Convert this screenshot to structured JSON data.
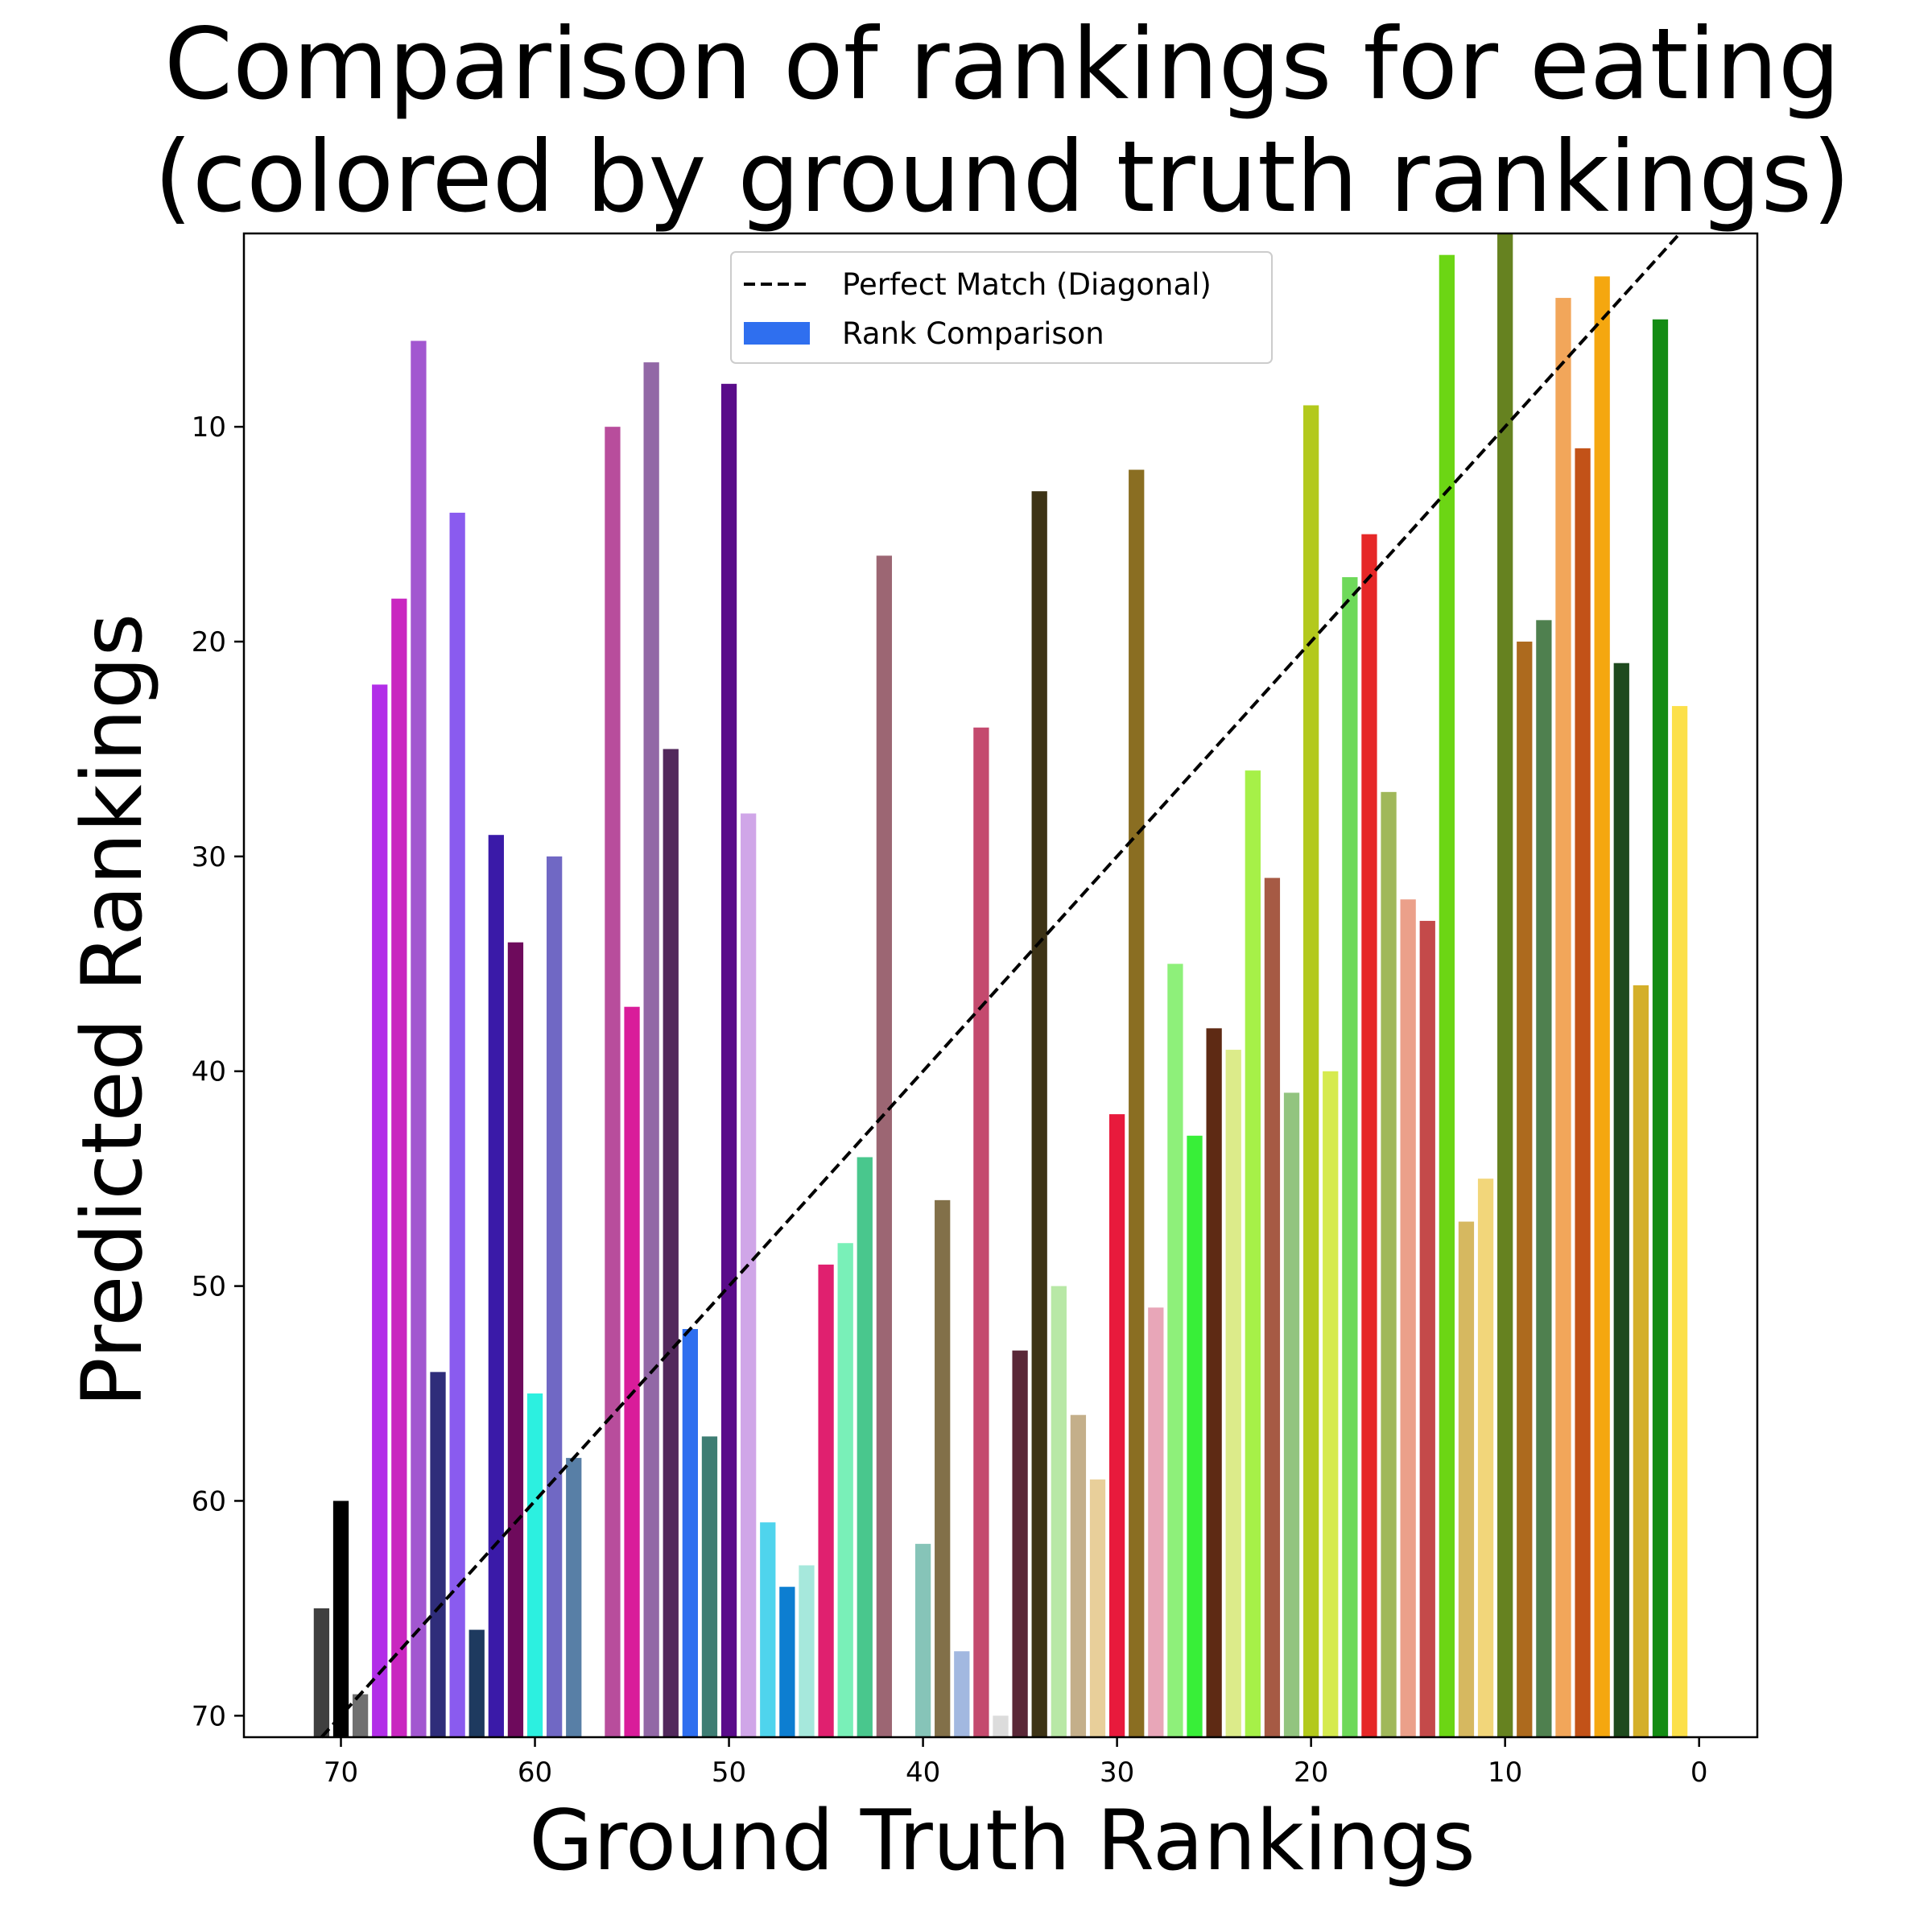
{
  "chart_data": {
    "type": "bar",
    "title_lines": [
      "Comparison of rankings for eating",
      "(colored by ground truth rankings)"
    ],
    "xlabel": "Ground Truth Rankings",
    "ylabel": "Predicted Rankings",
    "xlim": [
      75,
      -3
    ],
    "ylim": [
      71,
      1
    ],
    "x_ticks": [
      70,
      60,
      50,
      40,
      30,
      20,
      10,
      0
    ],
    "y_ticks": [
      10,
      20,
      30,
      40,
      50,
      60,
      70
    ],
    "legend": {
      "placement": "top-center",
      "entries": [
        {
          "label": "Perfect Match (Diagonal)",
          "style": "dashed-line",
          "color": "#000000"
        },
        {
          "label": "Rank Comparison",
          "style": "patch",
          "color": "#2f6fef"
        }
      ]
    },
    "diagonal": {
      "from": [
        71,
        71
      ],
      "to": [
        1,
        1
      ],
      "color": "#000000"
    },
    "bars": [
      {
        "x": 71,
        "y": 65,
        "color": "#3f3f3f"
      },
      {
        "x": 70,
        "y": 60,
        "color": "#000000"
      },
      {
        "x": 69,
        "y": 69,
        "color": "#707070"
      },
      {
        "x": 68,
        "y": 22,
        "color": "#b22ee8"
      },
      {
        "x": 67,
        "y": 18,
        "color": "#c926c0"
      },
      {
        "x": 66,
        "y": 6,
        "color": "#a257d0"
      },
      {
        "x": 65,
        "y": 54,
        "color": "#2f2d7a"
      },
      {
        "x": 64,
        "y": 14,
        "color": "#8a5bef"
      },
      {
        "x": 63,
        "y": 66,
        "color": "#1e3a5f"
      },
      {
        "x": 62,
        "y": 29,
        "color": "#3a1aa8"
      },
      {
        "x": 61,
        "y": 34,
        "color": "#6e0a5c"
      },
      {
        "x": 60,
        "y": 55,
        "color": "#2cf0e0"
      },
      {
        "x": 59,
        "y": 30,
        "color": "#7068c4"
      },
      {
        "x": 58,
        "y": 58,
        "color": "#587fa6"
      },
      {
        "x": 56,
        "y": 10,
        "color": "#b84d9c"
      },
      {
        "x": 55,
        "y": 37,
        "color": "#d91c9a"
      },
      {
        "x": 54,
        "y": 7,
        "color": "#9268a6"
      },
      {
        "x": 53,
        "y": 25,
        "color": "#52295c"
      },
      {
        "x": 52,
        "y": 52,
        "color": "#2f6fef"
      },
      {
        "x": 51,
        "y": 57,
        "color": "#3e7d73"
      },
      {
        "x": 50,
        "y": 8,
        "color": "#5a0c8a"
      },
      {
        "x": 49,
        "y": 28,
        "color": "#d0a6e8"
      },
      {
        "x": 48,
        "y": 61,
        "color": "#4fd4ed"
      },
      {
        "x": 47,
        "y": 64,
        "color": "#0d7ed1"
      },
      {
        "x": 46,
        "y": 63,
        "color": "#a6e8dc"
      },
      {
        "x": 45,
        "y": 49,
        "color": "#e0206f"
      },
      {
        "x": 44,
        "y": 48,
        "color": "#79f0b8"
      },
      {
        "x": 43,
        "y": 44,
        "color": "#49c78d"
      },
      {
        "x": 42,
        "y": 16,
        "color": "#9c6673"
      },
      {
        "x": 40,
        "y": 62,
        "color": "#86c4b8"
      },
      {
        "x": 39,
        "y": 46,
        "color": "#827049"
      },
      {
        "x": 38,
        "y": 67,
        "color": "#a2b8e0"
      },
      {
        "x": 37,
        "y": 24,
        "color": "#c44a6e"
      },
      {
        "x": 36,
        "y": 70,
        "color": "#dcdcdc"
      },
      {
        "x": 35,
        "y": 53,
        "color": "#5a2838"
      },
      {
        "x": 34,
        "y": 13,
        "color": "#3d3316"
      },
      {
        "x": 33,
        "y": 50,
        "color": "#b8e8a6"
      },
      {
        "x": 32,
        "y": 56,
        "color": "#c4af8a"
      },
      {
        "x": 31,
        "y": 59,
        "color": "#e8cf9a"
      },
      {
        "x": 30,
        "y": 42,
        "color": "#e81a3c"
      },
      {
        "x": 29,
        "y": 12,
        "color": "#8a6e22"
      },
      {
        "x": 28,
        "y": 51,
        "color": "#e8a6b8"
      },
      {
        "x": 27,
        "y": 35,
        "color": "#8ef07a"
      },
      {
        "x": 26,
        "y": 43,
        "color": "#38ef38"
      },
      {
        "x": 25,
        "y": 38,
        "color": "#5e2a14"
      },
      {
        "x": 24,
        "y": 39,
        "color": "#dceb8a"
      },
      {
        "x": 23,
        "y": 26,
        "color": "#a6f048"
      },
      {
        "x": 22,
        "y": 31,
        "color": "#a65a44"
      },
      {
        "x": 21,
        "y": 41,
        "color": "#92c47f"
      },
      {
        "x": 20,
        "y": 9,
        "color": "#b3c91c"
      },
      {
        "x": 19,
        "y": 40,
        "color": "#d6ea4f"
      },
      {
        "x": 18,
        "y": 17,
        "color": "#6ed95a"
      },
      {
        "x": 17,
        "y": 15,
        "color": "#e62828"
      },
      {
        "x": 16,
        "y": 27,
        "color": "#a0b85a"
      },
      {
        "x": 15,
        "y": 32,
        "color": "#eba08a"
      },
      {
        "x": 14,
        "y": 33,
        "color": "#c44a4a"
      },
      {
        "x": 13,
        "y": 2,
        "color": "#6cd614"
      },
      {
        "x": 12,
        "y": 47,
        "color": "#d6b860"
      },
      {
        "x": 11,
        "y": 45,
        "color": "#f2d67a"
      },
      {
        "x": 10,
        "y": 1,
        "color": "#668220"
      },
      {
        "x": 9,
        "y": 20,
        "color": "#ad6a1e"
      },
      {
        "x": 8,
        "y": 19,
        "color": "#4f804f"
      },
      {
        "x": 7,
        "y": 4,
        "color": "#f2a65a"
      },
      {
        "x": 6,
        "y": 11,
        "color": "#c25218"
      },
      {
        "x": 5,
        "y": 3,
        "color": "#f5a70f"
      },
      {
        "x": 4,
        "y": 21,
        "color": "#1e4a1e"
      },
      {
        "x": 3,
        "y": 36,
        "color": "#d4af2a"
      },
      {
        "x": 2,
        "y": 5,
        "color": "#148c14"
      },
      {
        "x": 1,
        "y": 23,
        "color": "#fce04a"
      }
    ]
  }
}
